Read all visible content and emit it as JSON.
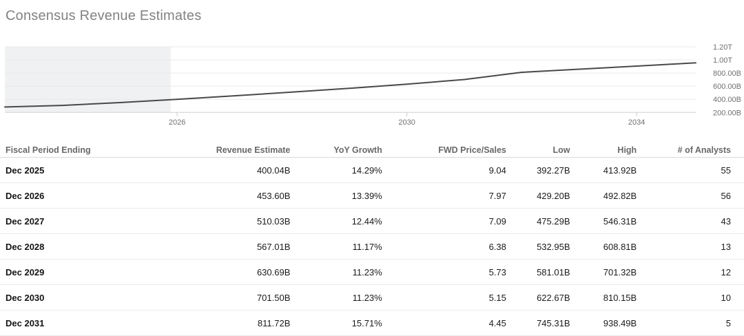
{
  "section": {
    "title": "Consensus Revenue Estimates"
  },
  "chart_data": {
    "type": "line",
    "title": "Consensus Revenue Estimates",
    "grid": true,
    "legend": false,
    "x_axis": {
      "range": [
        2023,
        2035.03
      ],
      "ticks": [
        {
          "x": 2026,
          "label": "2026"
        },
        {
          "x": 2030,
          "label": "2030"
        },
        {
          "x": 2034,
          "label": "2034"
        }
      ]
    },
    "y_axis": {
      "side": "right",
      "range_billions": [
        200,
        1200
      ],
      "ticks": [
        {
          "v": 200,
          "label": "200.00B"
        },
        {
          "v": 400,
          "label": "400.00B"
        },
        {
          "v": 600,
          "label": "600.00B"
        },
        {
          "v": 800,
          "label": "800.00B"
        },
        {
          "v": 1000,
          "label": "1.00T"
        },
        {
          "v": 1200,
          "label": "1.20T"
        }
      ]
    },
    "shaded_past_region": {
      "x_start": 2023,
      "x_end": 2025.89,
      "color": "#f0f1f3"
    },
    "series": [
      {
        "name": "Revenue estimate (USD, billions)",
        "color": "#48484a",
        "points": [
          {
            "x": 2023.0,
            "y": 283
          },
          {
            "x": 2024.0,
            "y": 307
          },
          {
            "x": 2025.0,
            "y": 350
          },
          {
            "x": 2026.0,
            "y": 400.04
          },
          {
            "x": 2027.0,
            "y": 453.6
          },
          {
            "x": 2028.0,
            "y": 510.03
          },
          {
            "x": 2029.0,
            "y": 567.01
          },
          {
            "x": 2030.0,
            "y": 630.69
          },
          {
            "x": 2031.0,
            "y": 701.5
          },
          {
            "x": 2032.0,
            "y": 811.72
          },
          {
            "x": 2033.0,
            "y": 859
          },
          {
            "x": 2034.0,
            "y": 906
          },
          {
            "x": 2035.03,
            "y": 955
          }
        ]
      }
    ]
  },
  "table": {
    "columns": [
      "Fiscal Period Ending",
      "Revenue Estimate",
      "YoY Growth",
      "FWD Price/Sales",
      "Low",
      "High",
      "# of Analysts"
    ],
    "rows": [
      [
        "Dec 2025",
        "400.04B",
        "14.29%",
        "9.04",
        "392.27B",
        "413.92B",
        "55"
      ],
      [
        "Dec 2026",
        "453.60B",
        "13.39%",
        "7.97",
        "429.20B",
        "492.82B",
        "56"
      ],
      [
        "Dec 2027",
        "510.03B",
        "12.44%",
        "7.09",
        "475.29B",
        "546.31B",
        "43"
      ],
      [
        "Dec 2028",
        "567.01B",
        "11.17%",
        "6.38",
        "532.95B",
        "608.81B",
        "13"
      ],
      [
        "Dec 2029",
        "630.69B",
        "11.23%",
        "5.73",
        "581.01B",
        "701.32B",
        "12"
      ],
      [
        "Dec 2030",
        "701.50B",
        "11.23%",
        "5.15",
        "622.67B",
        "810.15B",
        "10"
      ],
      [
        "Dec 2031",
        "811.72B",
        "15.71%",
        "4.45",
        "745.31B",
        "938.49B",
        "5"
      ]
    ]
  }
}
